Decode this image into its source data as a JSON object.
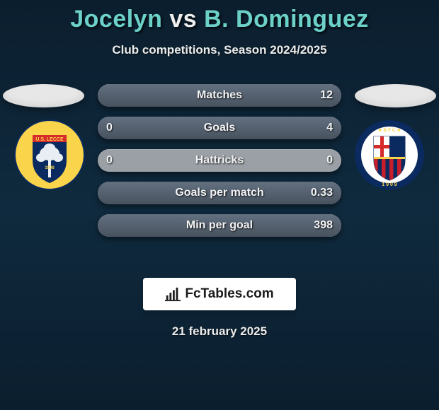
{
  "title": {
    "p1": "Jocelyn",
    "vs": "vs",
    "p2": "B. Dominguez"
  },
  "subtitle": "Club competitions, Season 2024/2025",
  "date": "21 february 2025",
  "logo_text": "FcTables.com",
  "colors": {
    "teal": "#6bd1c9",
    "bar_base": "#9aa0a6",
    "bar_fill_top": "#637080",
    "bar_fill_bottom": "#47525e",
    "text": "#f2f3f4"
  },
  "crests": {
    "left": {
      "name": "US Lecce",
      "bg": "#fad44a",
      "shield": "#0a2a60",
      "accent": "#d52b2b",
      "tree": "#e9eef4"
    },
    "right": {
      "name": "Bologna FC",
      "ring": "#0a2a60",
      "inner": "#ffffff",
      "red": "#c81e2b",
      "blue": "#0a2a60",
      "cross": "#d52b2b"
    }
  },
  "rows": [
    {
      "label": "Matches",
      "left": "",
      "right": "12",
      "fill_left_pct": 0,
      "fill_right_pct": 100,
      "show_left_val": false
    },
    {
      "label": "Goals",
      "left": "0",
      "right": "4",
      "fill_left_pct": 0,
      "fill_right_pct": 100,
      "show_left_val": true
    },
    {
      "label": "Hattricks",
      "left": "0",
      "right": "0",
      "fill_left_pct": 0,
      "fill_right_pct": 0,
      "show_left_val": true
    },
    {
      "label": "Goals per match",
      "left": "",
      "right": "0.33",
      "fill_left_pct": 0,
      "fill_right_pct": 100,
      "show_left_val": false
    },
    {
      "label": "Min per goal",
      "left": "",
      "right": "398",
      "fill_left_pct": 0,
      "fill_right_pct": 100,
      "show_left_val": false
    }
  ]
}
